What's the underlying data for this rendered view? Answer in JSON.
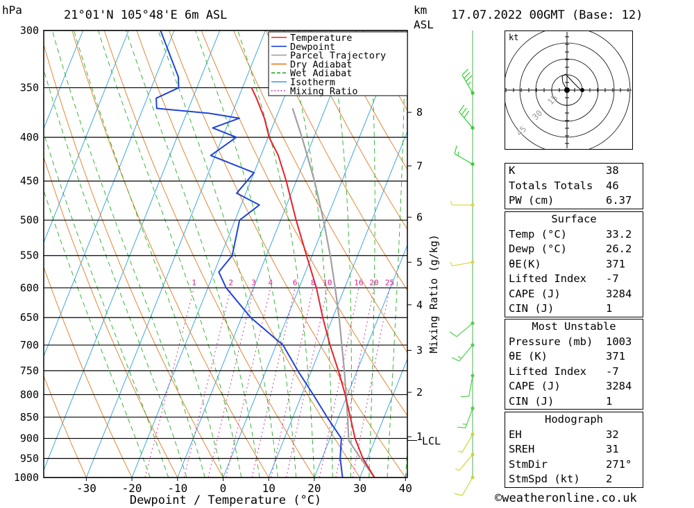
{
  "header": {
    "pressure_unit": "hPa",
    "location": "21°01'N  105°48'E  6m  ASL",
    "km_label": "km",
    "asl_label": "ASL",
    "datetime": "17.07.2022  00GMT  (Base: 12)"
  },
  "chart_data": {
    "type": "line",
    "subtype": "skew-T log-p diagram",
    "xlabel": "Dewpoint / Temperature (°C)",
    "ylabel": "hPa",
    "mixing_ratio_axis_label": "Mixing Ratio (g/kg)",
    "x_ticks": [
      -30,
      -20,
      -10,
      0,
      10,
      20,
      30,
      40
    ],
    "pressure_levels": [
      300,
      350,
      400,
      450,
      500,
      550,
      600,
      650,
      700,
      750,
      800,
      850,
      900,
      950,
      1000
    ],
    "km_ticks": [
      {
        "km": 1,
        "p": 896,
        "label": "1"
      },
      {
        "km": 2,
        "p": 795,
        "label": "2"
      },
      {
        "km": 3,
        "p": 710,
        "label": "3"
      },
      {
        "km": 4,
        "p": 628,
        "label": "4"
      },
      {
        "km": 5,
        "p": 560,
        "label": "5"
      },
      {
        "km": 6,
        "p": 496,
        "label": "6"
      },
      {
        "km": 7,
        "p": 432,
        "label": "7"
      },
      {
        "km": 8,
        "p": 374,
        "label": "8"
      }
    ],
    "lcl": {
      "label": "LCL",
      "p": 905
    },
    "mixing_ratio_labels": [
      "1",
      "2",
      "3",
      "4",
      "6",
      "8",
      "10",
      "16",
      "20",
      "25"
    ],
    "mixing_ratio_values": [
      1,
      2,
      3,
      4,
      6,
      8,
      10,
      16,
      20,
      25
    ],
    "legend": {
      "placement": "top-right",
      "entries": [
        {
          "name": "Temperature",
          "color": "#e8202a",
          "style": "solid"
        },
        {
          "name": "Dewpoint",
          "color": "#1f44d8",
          "style": "solid"
        },
        {
          "name": "Parcel Trajectory",
          "color": "#a0a0a0",
          "style": "solid"
        },
        {
          "name": "Dry Adiabat",
          "color": "#e07a1e",
          "style": "solid"
        },
        {
          "name": "Wet Adiabat",
          "color": "#22b022",
          "style": "dashed"
        },
        {
          "name": "Isotherm",
          "color": "#2a9fe0",
          "style": "solid"
        },
        {
          "name": "Mixing Ratio",
          "color": "#d0208a",
          "style": "dotted"
        }
      ]
    },
    "series": [
      {
        "name": "Temperature",
        "color": "#e8202a",
        "points": [
          {
            "p": 1000,
            "t": 33.2
          },
          {
            "p": 950,
            "t": 29.0
          },
          {
            "p": 900,
            "t": 25.5
          },
          {
            "p": 850,
            "t": 22.6
          },
          {
            "p": 800,
            "t": 19.5
          },
          {
            "p": 750,
            "t": 15.9
          },
          {
            "p": 700,
            "t": 11.8
          },
          {
            "p": 650,
            "t": 7.8
          },
          {
            "p": 600,
            "t": 3.8
          },
          {
            "p": 550,
            "t": -1.2
          },
          {
            "p": 500,
            "t": -6.6
          },
          {
            "p": 450,
            "t": -12.2
          },
          {
            "p": 420,
            "t": -16.2
          },
          {
            "p": 400,
            "t": -19.8
          },
          {
            "p": 380,
            "t": -22.5
          },
          {
            "p": 360,
            "t": -26.0
          },
          {
            "p": 350,
            "t": -28.0
          }
        ]
      },
      {
        "name": "Dewpoint",
        "color": "#1f44d8",
        "points": [
          {
            "p": 1000,
            "t": 26.2
          },
          {
            "p": 950,
            "t": 24.0
          },
          {
            "p": 900,
            "t": 22.5
          },
          {
            "p": 850,
            "t": 17.5
          },
          {
            "p": 800,
            "t": 12.5
          },
          {
            "p": 750,
            "t": 7.0
          },
          {
            "p": 700,
            "t": 1.5
          },
          {
            "p": 650,
            "t": -8.0
          },
          {
            "p": 600,
            "t": -16.0
          },
          {
            "p": 575,
            "t": -19.0
          },
          {
            "p": 550,
            "t": -17.5
          },
          {
            "p": 500,
            "t": -19.0
          },
          {
            "p": 480,
            "t": -16.0
          },
          {
            "p": 465,
            "t": -22.0
          },
          {
            "p": 440,
            "t": -20.0
          },
          {
            "p": 420,
            "t": -31.0
          },
          {
            "p": 400,
            "t": -27.0
          },
          {
            "p": 390,
            "t": -33.0
          },
          {
            "p": 380,
            "t": -28.0
          },
          {
            "p": 375,
            "t": -35.0
          },
          {
            "p": 370,
            "t": -47.0
          },
          {
            "p": 360,
            "t": -48.0
          },
          {
            "p": 350,
            "t": -44.0
          },
          {
            "p": 340,
            "t": -45.0
          },
          {
            "p": 300,
            "t": -53.0
          }
        ]
      },
      {
        "name": "Parcel Trajectory",
        "color": "#a0a0a0",
        "points": [
          {
            "p": 1000,
            "t": 33.2
          },
          {
            "p": 950,
            "t": 28.5
          },
          {
            "p": 905,
            "t": 24.3
          },
          {
            "p": 850,
            "t": 22.0
          },
          {
            "p": 800,
            "t": 19.7
          },
          {
            "p": 750,
            "t": 17.2
          },
          {
            "p": 700,
            "t": 14.4
          },
          {
            "p": 650,
            "t": 11.4
          },
          {
            "p": 600,
            "t": 7.9
          },
          {
            "p": 550,
            "t": 4.0
          },
          {
            "p": 500,
            "t": -0.6
          },
          {
            "p": 450,
            "t": -6.0
          },
          {
            "p": 400,
            "t": -12.6
          },
          {
            "p": 370,
            "t": -17.2
          }
        ]
      }
    ],
    "wind_profile": [
      {
        "p": 355,
        "dir": 330,
        "spd": 35
      },
      {
        "p": 390,
        "dir": 320,
        "spd": 30
      },
      {
        "p": 430,
        "dir": 300,
        "spd": 15
      },
      {
        "p": 480,
        "dir": 270,
        "spd": 5
      },
      {
        "p": 560,
        "dir": 260,
        "spd": 5
      },
      {
        "p": 660,
        "dir": 230,
        "spd": 10
      },
      {
        "p": 700,
        "dir": 220,
        "spd": 15
      },
      {
        "p": 760,
        "dir": 190,
        "spd": 10
      },
      {
        "p": 830,
        "dir": 200,
        "spd": 15
      },
      {
        "p": 890,
        "dir": 210,
        "spd": 5
      },
      {
        "p": 940,
        "dir": 220,
        "spd": 5
      },
      {
        "p": 1000,
        "dir": 210,
        "spd": 10
      }
    ],
    "hodograph": {
      "unit_label": "kt",
      "ring_labels": [
        "15",
        "30",
        "45"
      ]
    }
  },
  "indices": {
    "rows": [
      {
        "label": "K",
        "value": "38"
      },
      {
        "label": "Totals Totals",
        "value": "46"
      },
      {
        "label": "PW (cm)",
        "value": "6.37"
      }
    ]
  },
  "surface": {
    "title": "Surface",
    "rows": [
      {
        "label": "Temp (°C)",
        "value": "33.2"
      },
      {
        "label": "Dewp (°C)",
        "value": "26.2"
      },
      {
        "label": "θE(K)",
        "value": "371"
      },
      {
        "label": "Lifted Index",
        "value": "-7"
      },
      {
        "label": "CAPE (J)",
        "value": "3284"
      },
      {
        "label": "CIN (J)",
        "value": "1"
      }
    ]
  },
  "most_unstable": {
    "title": "Most Unstable",
    "rows": [
      {
        "label": "Pressure (mb)",
        "value": "1003"
      },
      {
        "label": "θE (K)",
        "value": "371"
      },
      {
        "label": "Lifted Index",
        "value": "-7"
      },
      {
        "label": "CAPE (J)",
        "value": "3284"
      },
      {
        "label": "CIN (J)",
        "value": "1"
      }
    ]
  },
  "hodograph_table": {
    "title": "Hodograph",
    "rows": [
      {
        "label": "EH",
        "value": "32"
      },
      {
        "label": "SREH",
        "value": "31"
      },
      {
        "label": "StmDir",
        "value": "271°"
      },
      {
        "label": "StmSpd (kt)",
        "value": "2"
      }
    ]
  },
  "footer": {
    "credit": "©weatheronline.co.uk"
  }
}
